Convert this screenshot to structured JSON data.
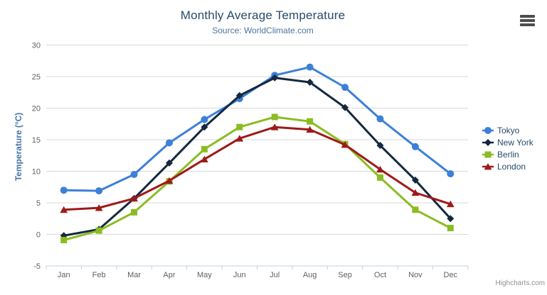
{
  "header": {
    "title": "Monthly Average Temperature",
    "subtitle": "Source: WorldClimate.com"
  },
  "credits": {
    "label": "Highcharts.com"
  },
  "export_menu": {
    "icon": "hamburger-icon"
  },
  "colors": {
    "title_text": "#274b6d",
    "subtitle_text": "#4d759e",
    "axis_title_text": "#4572a7",
    "tick_label_text": "#606060",
    "legend_text": "#274b6d",
    "gridline": "#d8d8d8",
    "axis_line": "#c0d0e0",
    "export_icon": "#4d4d4d",
    "credits_text": "#909090"
  },
  "chart_data": {
    "type": "line",
    "title": "Monthly Average Temperature",
    "subtitle": "Source: WorldClimate.com",
    "xlabel": "",
    "ylabel": "Temperature (°C)",
    "categories": [
      "Jan",
      "Feb",
      "Mar",
      "Apr",
      "May",
      "Jun",
      "Jul",
      "Aug",
      "Sep",
      "Oct",
      "Nov",
      "Dec"
    ],
    "ylim": [
      -5,
      30
    ],
    "y_ticks": [
      -5,
      0,
      5,
      10,
      15,
      20,
      25,
      30
    ],
    "grid": true,
    "legend_position": "right",
    "series": [
      {
        "name": "Tokyo",
        "color": "#3c80d8",
        "marker": "circle",
        "values": [
          7.0,
          6.9,
          9.5,
          14.5,
          18.2,
          21.5,
          25.2,
          26.5,
          23.3,
          18.3,
          13.9,
          9.6
        ]
      },
      {
        "name": "New York",
        "color": "#14293e",
        "marker": "diamond",
        "values": [
          -0.2,
          0.8,
          5.7,
          11.3,
          17.0,
          22.0,
          24.8,
          24.1,
          20.1,
          14.1,
          8.6,
          2.5
        ]
      },
      {
        "name": "Berlin",
        "color": "#8bbc21",
        "marker": "square",
        "values": [
          -0.9,
          0.6,
          3.5,
          8.4,
          13.5,
          17.0,
          18.6,
          17.9,
          14.3,
          9.0,
          3.9,
          1.0
        ]
      },
      {
        "name": "London",
        "color": "#9e1a1a",
        "marker": "triangle",
        "values": [
          3.9,
          4.2,
          5.7,
          8.5,
          11.9,
          15.2,
          17.0,
          16.6,
          14.2,
          10.3,
          6.6,
          4.8
        ]
      }
    ]
  }
}
